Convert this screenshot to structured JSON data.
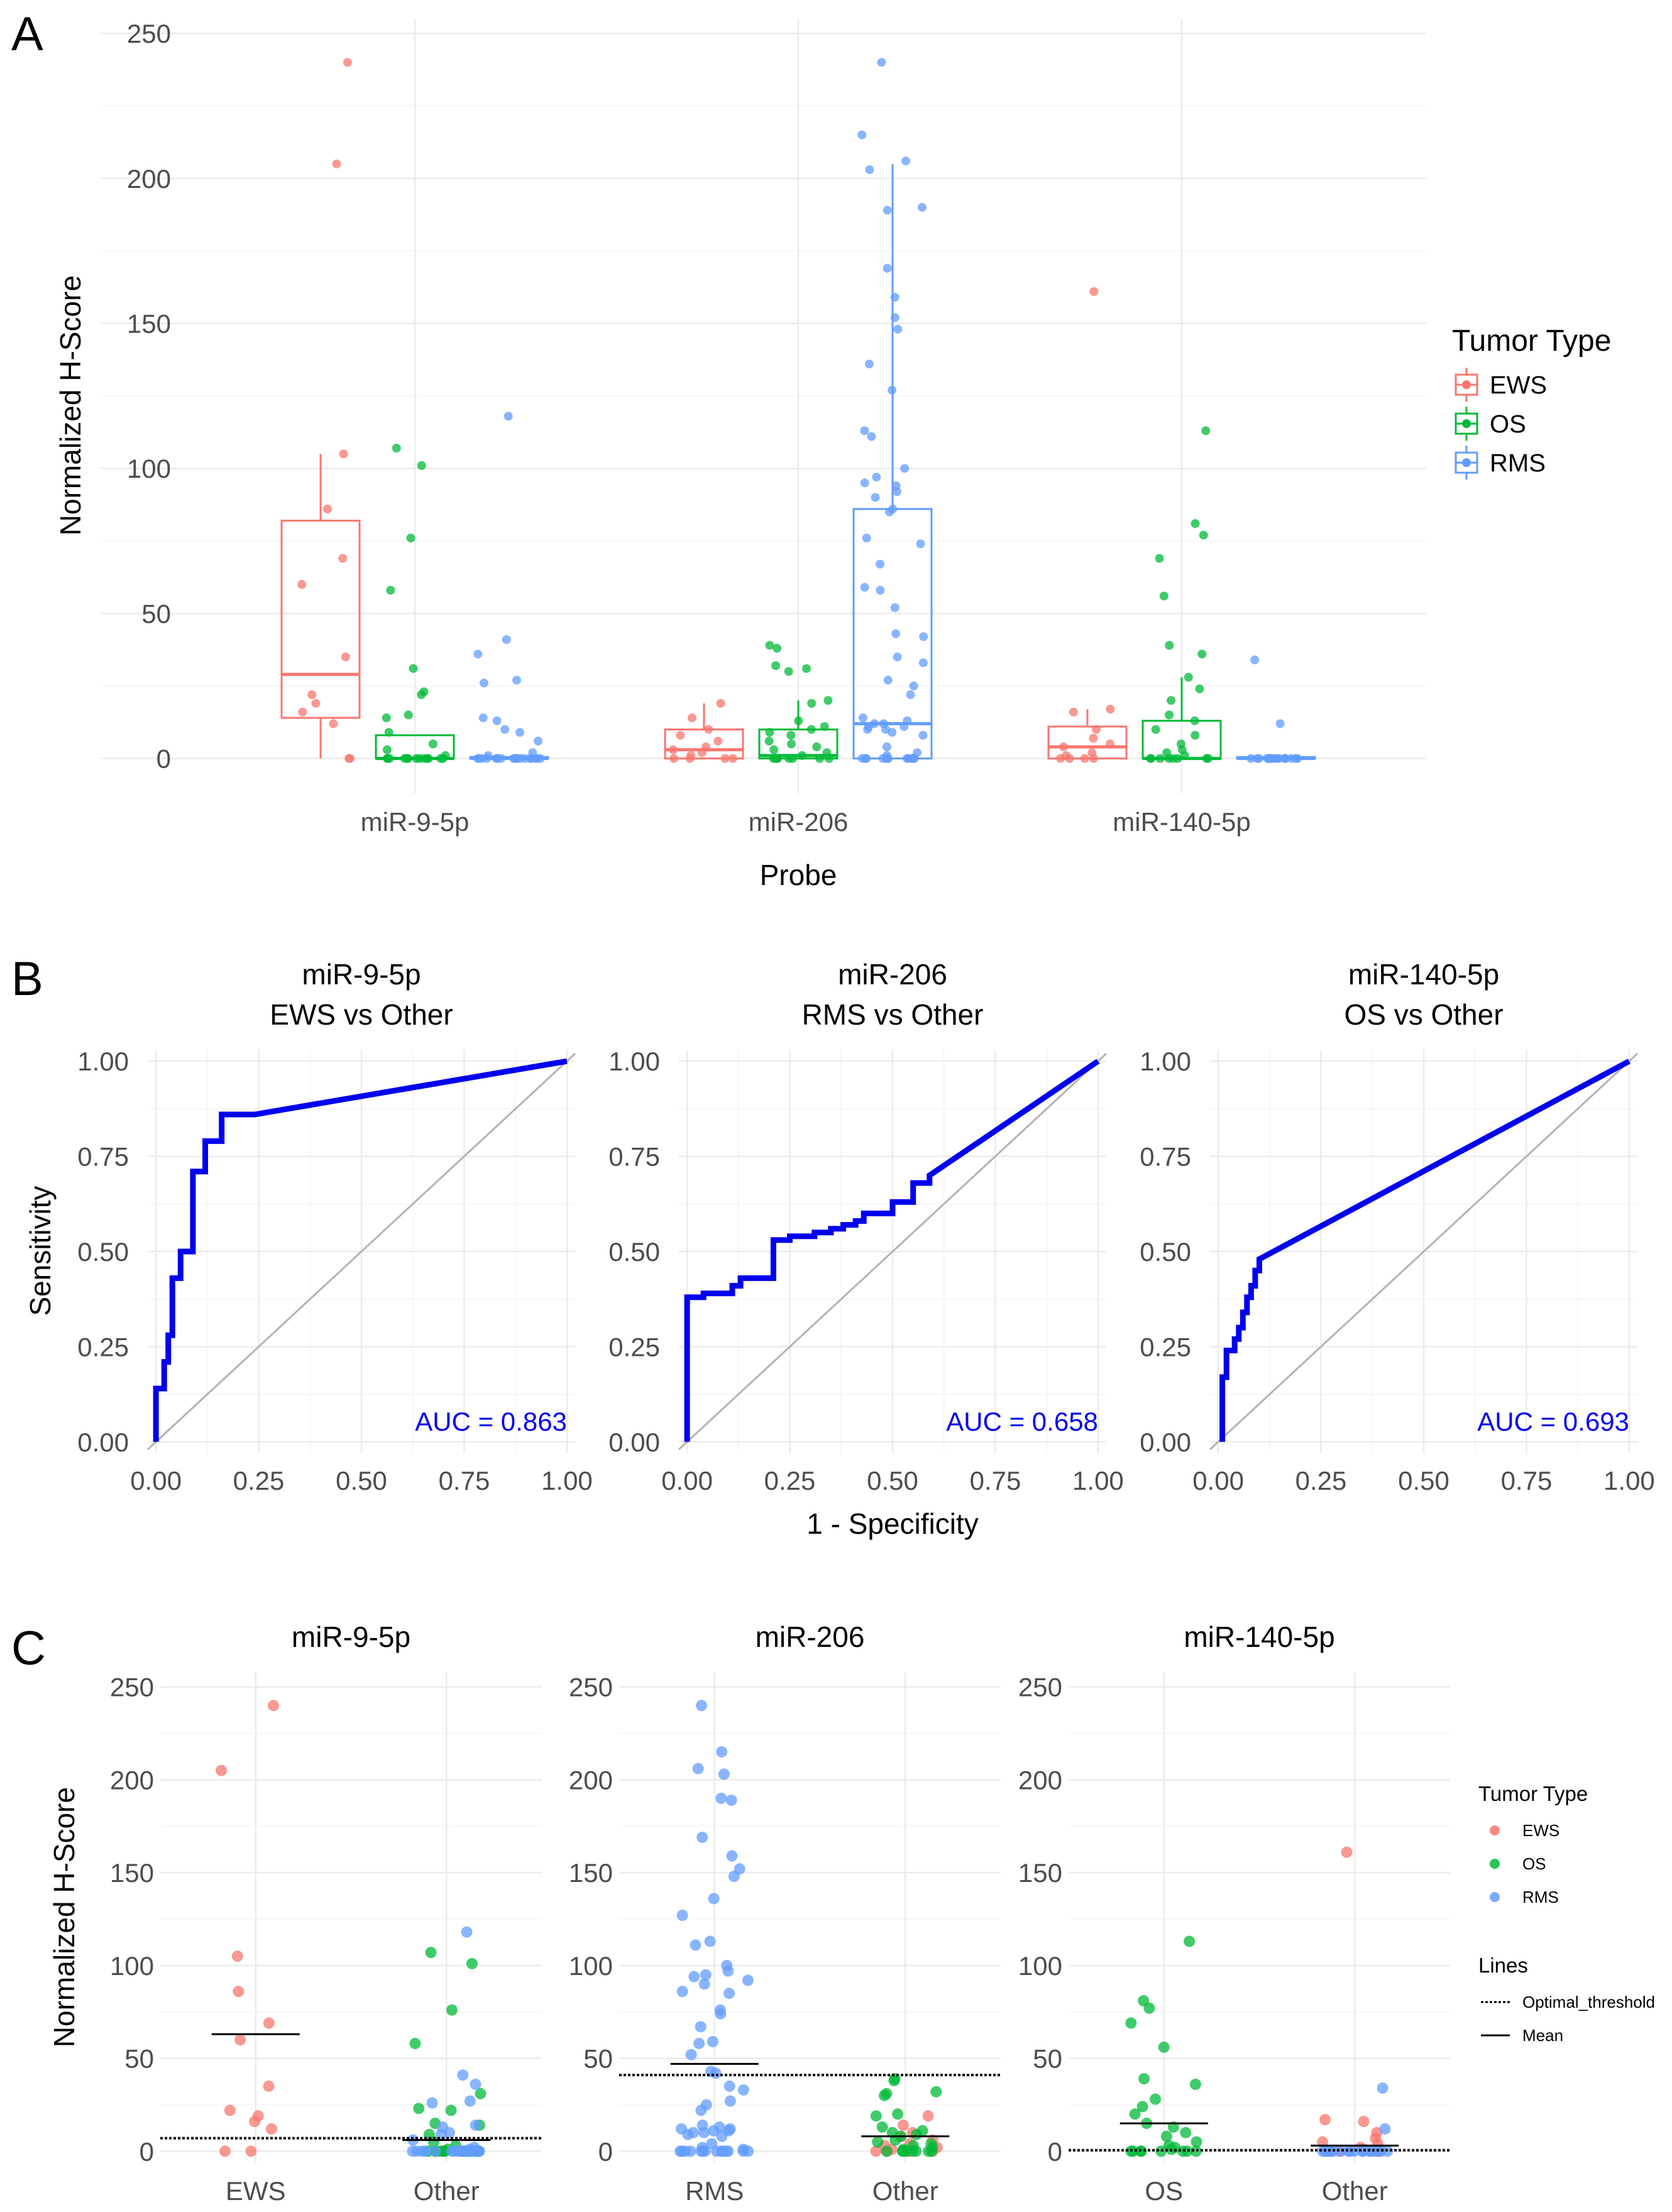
{
  "panel_labels": {
    "a": "A",
    "b": "B",
    "c": "C"
  },
  "colors": {
    "EWS": "#F8766D",
    "OS": "#00BA38",
    "RMS": "#619CFF",
    "roc": "#0000EE",
    "diagonal": "#b3b3b3",
    "auc_text": "#0000EE"
  },
  "chart_data": [
    {
      "panel": "A",
      "type": "box-jitter",
      "title": "",
      "xlabel": "Probe",
      "ylabel": "Normalized H-Score",
      "ylim": [
        -12,
        255
      ],
      "yticks": [
        0,
        50,
        100,
        150,
        200,
        250
      ],
      "ytick_labels": [
        "0",
        "50",
        "100",
        "150",
        "200",
        "250"
      ],
      "categories": [
        "miR-9-5p",
        "miR-206",
        "miR-140-5p"
      ],
      "legend": {
        "title": "Tumor Type",
        "entries": [
          "EWS",
          "OS",
          "RMS"
        ]
      },
      "boxes": [
        {
          "probe": "miR-9-5p",
          "group": "EWS",
          "q1": 14,
          "median": 29,
          "q3": 82,
          "whisker_low": 0,
          "whisker_high": 105
        },
        {
          "probe": "miR-9-5p",
          "group": "OS",
          "q1": 0,
          "median": 0,
          "q3": 8,
          "whisker_low": 0,
          "whisker_high": 8
        },
        {
          "probe": "miR-9-5p",
          "group": "RMS",
          "q1": 0,
          "median": 0,
          "q3": 0.5,
          "whisker_low": 0,
          "whisker_high": 0.5
        },
        {
          "probe": "miR-206",
          "group": "EWS",
          "q1": 0,
          "median": 3,
          "q3": 10,
          "whisker_low": 0,
          "whisker_high": 19
        },
        {
          "probe": "miR-206",
          "group": "OS",
          "q1": 0,
          "median": 1,
          "q3": 10,
          "whisker_low": 0,
          "whisker_high": 20
        },
        {
          "probe": "miR-206",
          "group": "RMS",
          "q1": 0,
          "median": 12,
          "q3": 86,
          "whisker_low": 0,
          "whisker_high": 205
        },
        {
          "probe": "miR-140-5p",
          "group": "EWS",
          "q1": 0,
          "median": 4,
          "q3": 11,
          "whisker_low": 0,
          "whisker_high": 17
        },
        {
          "probe": "miR-140-5p",
          "group": "OS",
          "q1": 0,
          "median": 0,
          "q3": 13,
          "whisker_low": 0,
          "whisker_high": 28
        },
        {
          "probe": "miR-140-5p",
          "group": "RMS",
          "q1": 0,
          "median": 0,
          "q3": 0.5,
          "whisker_low": 0,
          "whisker_high": 0.5
        }
      ],
      "points": {
        "miR-9-5p": {
          "EWS": [
            240,
            205,
            105,
            86,
            69,
            60,
            35,
            22,
            19,
            16,
            12,
            0,
            0
          ],
          "OS": [
            107,
            101,
            76,
            58,
            31,
            23,
            22,
            15,
            14,
            9,
            5,
            3,
            1,
            0,
            0,
            0,
            0,
            0,
            0,
            0,
            0,
            0,
            0,
            0,
            0,
            0
          ],
          "RMS": [
            118,
            41,
            36,
            27,
            26,
            14,
            13,
            10,
            9,
            6,
            2,
            1,
            0,
            0,
            0,
            0,
            0,
            0,
            0,
            0,
            0,
            0,
            0,
            0,
            0,
            0,
            0,
            0,
            0,
            0
          ]
        },
        "miR-206": {
          "EWS": [
            19,
            14,
            10,
            8,
            6,
            4,
            3,
            2,
            1,
            0,
            0,
            0,
            0
          ],
          "OS": [
            39,
            38,
            32,
            31,
            30,
            20,
            19,
            13,
            11,
            10,
            9,
            8,
            6,
            5,
            4,
            3,
            2,
            1,
            0,
            0,
            0,
            0,
            0,
            0,
            0,
            0
          ],
          "RMS": [
            240,
            215,
            206,
            203,
            190,
            189,
            169,
            159,
            152,
            148,
            136,
            127,
            113,
            111,
            100,
            97,
            95,
            94,
            92,
            90,
            86,
            85,
            76,
            74,
            67,
            59,
            58,
            52,
            43,
            42,
            35,
            33,
            27,
            25,
            22,
            14,
            13,
            12,
            12,
            11,
            11,
            10,
            10,
            9,
            8,
            4,
            2,
            1,
            0,
            0,
            0,
            0,
            0,
            0,
            0,
            0,
            0,
            0,
            0,
            0,
            0,
            0
          ]
        },
        "miR-140-5p": {
          "EWS": [
            161,
            17,
            16,
            10,
            7,
            5,
            4,
            2,
            1,
            0,
            0,
            0,
            0
          ],
          "OS": [
            113,
            81,
            77,
            69,
            56,
            39,
            36,
            28,
            24,
            20,
            15,
            13,
            10,
            8,
            5,
            3,
            2,
            1,
            0,
            0,
            0,
            0,
            0,
            0,
            0,
            0
          ],
          "RMS": [
            34,
            12,
            0,
            0,
            0,
            0,
            0,
            0,
            0,
            0,
            0,
            0,
            0,
            0,
            0,
            0,
            0,
            0,
            0,
            0
          ]
        }
      }
    },
    {
      "panel": "B",
      "type": "line",
      "subtype": "roc",
      "xlabel": "1 - Specificity",
      "ylabel": "Sensitivity",
      "xlim": [
        -0.02,
        1.02
      ],
      "ylim": [
        -0.03,
        1.03
      ],
      "xticks": [
        0,
        0.25,
        0.5,
        0.75,
        1
      ],
      "xtick_labels": [
        "0.00",
        "0.25",
        "0.50",
        "0.75",
        "1.00"
      ],
      "yticks": [
        0,
        0.25,
        0.5,
        0.75,
        1
      ],
      "ytick_labels": [
        "0.00",
        "0.25",
        "0.50",
        "0.75",
        "1.00"
      ],
      "facets": [
        {
          "title_line1": "miR-9-5p",
          "title_line2": "EWS vs Other",
          "auc_label": "AUC = 0.863",
          "roc": [
            [
              0,
              0
            ],
            [
              0,
              0.14
            ],
            [
              0.02,
              0.14
            ],
            [
              0.02,
              0.21
            ],
            [
              0.03,
              0.21
            ],
            [
              0.03,
              0.28
            ],
            [
              0.04,
              0.28
            ],
            [
              0.04,
              0.43
            ],
            [
              0.06,
              0.43
            ],
            [
              0.06,
              0.5
            ],
            [
              0.09,
              0.5
            ],
            [
              0.09,
              0.57
            ],
            [
              0.09,
              0.71
            ],
            [
              0.12,
              0.71
            ],
            [
              0.12,
              0.79
            ],
            [
              0.16,
              0.79
            ],
            [
              0.16,
              0.86
            ],
            [
              0.24,
              0.86
            ],
            [
              1,
              1
            ]
          ]
        },
        {
          "title_line1": "miR-206",
          "title_line2": "RMS vs Other",
          "auc_label": "AUC = 0.658",
          "roc": [
            [
              0,
              0
            ],
            [
              0,
              0.38
            ],
            [
              0.04,
              0.38
            ],
            [
              0.04,
              0.39
            ],
            [
              0.11,
              0.39
            ],
            [
              0.11,
              0.41
            ],
            [
              0.13,
              0.41
            ],
            [
              0.13,
              0.43
            ],
            [
              0.21,
              0.43
            ],
            [
              0.21,
              0.53
            ],
            [
              0.25,
              0.53
            ],
            [
              0.25,
              0.54
            ],
            [
              0.31,
              0.54
            ],
            [
              0.31,
              0.55
            ],
            [
              0.35,
              0.55
            ],
            [
              0.35,
              0.56
            ],
            [
              0.38,
              0.56
            ],
            [
              0.38,
              0.57
            ],
            [
              0.41,
              0.57
            ],
            [
              0.41,
              0.58
            ],
            [
              0.43,
              0.58
            ],
            [
              0.43,
              0.6
            ],
            [
              0.5,
              0.6
            ],
            [
              0.5,
              0.63
            ],
            [
              0.55,
              0.63
            ],
            [
              0.55,
              0.68
            ],
            [
              0.59,
              0.68
            ],
            [
              0.59,
              0.7
            ],
            [
              1,
              1
            ]
          ]
        },
        {
          "title_line1": "miR-140-5p",
          "title_line2": "OS vs Other",
          "auc_label": "AUC = 0.693",
          "roc": [
            [
              0.01,
              0
            ],
            [
              0.01,
              0.06
            ],
            [
              0.01,
              0.17
            ],
            [
              0.02,
              0.17
            ],
            [
              0.02,
              0.24
            ],
            [
              0.04,
              0.24
            ],
            [
              0.04,
              0.27
            ],
            [
              0.05,
              0.27
            ],
            [
              0.05,
              0.3
            ],
            [
              0.06,
              0.3
            ],
            [
              0.06,
              0.34
            ],
            [
              0.07,
              0.34
            ],
            [
              0.07,
              0.38
            ],
            [
              0.08,
              0.38
            ],
            [
              0.08,
              0.41
            ],
            [
              0.09,
              0.41
            ],
            [
              0.09,
              0.45
            ],
            [
              0.1,
              0.45
            ],
            [
              0.1,
              0.48
            ],
            [
              1,
              1
            ]
          ]
        }
      ]
    },
    {
      "panel": "C",
      "type": "scatter",
      "subtype": "jitter-mean-threshold",
      "ylabel": "Normalized H-Score",
      "ylim": [
        -6,
        258
      ],
      "yticks": [
        0,
        50,
        100,
        150,
        200,
        250
      ],
      "ytick_labels": [
        "0",
        "50",
        "100",
        "150",
        "200",
        "250"
      ],
      "legend": {
        "title": "Tumor Type",
        "entries": [
          "EWS",
          "OS",
          "RMS"
        ],
        "lines_title": "Lines",
        "lines_entries": [
          "Optimal_threshold",
          "Mean"
        ]
      },
      "facets": [
        {
          "title": "miR-9-5p",
          "categories": [
            "EWS",
            "Other"
          ],
          "mean": {
            "EWS": 63,
            "Other": 6
          },
          "threshold": 7,
          "groups": {
            "EWS": {
              "EWS": [
                240,
                205,
                105,
                86,
                69,
                60,
                35,
                22,
                19,
                16,
                12,
                0,
                0
              ]
            },
            "Other": {
              "OS": [
                107,
                101,
                76,
                58,
                31,
                23,
                22,
                15,
                14,
                9,
                5,
                3,
                1,
                0,
                0,
                0,
                0,
                0,
                0,
                0,
                0,
                0,
                0,
                0,
                0,
                0
              ],
              "RMS": [
                118,
                41,
                36,
                27,
                26,
                14,
                13,
                10,
                9,
                6,
                2,
                1,
                0,
                0,
                0,
                0,
                0,
                0,
                0,
                0,
                0,
                0,
                0,
                0,
                0,
                0,
                0,
                0,
                0,
                0
              ]
            }
          }
        },
        {
          "title": "miR-206",
          "categories": [
            "RMS",
            "Other"
          ],
          "mean": {
            "RMS": 47,
            "Other": 8
          },
          "threshold": 41,
          "groups": {
            "RMS": {
              "RMS": [
                240,
                215,
                206,
                203,
                190,
                189,
                169,
                159,
                152,
                148,
                136,
                127,
                113,
                111,
                100,
                97,
                95,
                94,
                92,
                90,
                86,
                85,
                76,
                74,
                67,
                59,
                58,
                52,
                43,
                42,
                35,
                33,
                27,
                25,
                22,
                14,
                13,
                12,
                12,
                11,
                11,
                10,
                10,
                9,
                8,
                4,
                2,
                1,
                0,
                0,
                0,
                0,
                0,
                0,
                0,
                0,
                0,
                0,
                0,
                0,
                0,
                0
              ]
            },
            "Other": {
              "EWS": [
                19,
                14,
                10,
                8,
                6,
                4,
                3,
                2,
                1,
                0,
                0,
                0,
                0
              ],
              "OS": [
                39,
                38,
                32,
                31,
                30,
                20,
                19,
                13,
                11,
                10,
                9,
                8,
                6,
                5,
                4,
                3,
                2,
                1,
                0,
                0,
                0,
                0,
                0,
                0,
                0,
                0
              ]
            }
          }
        },
        {
          "title": "miR-140-5p",
          "categories": [
            "OS",
            "Other"
          ],
          "mean": {
            "OS": 15,
            "Other": 3
          },
          "threshold": 0.5,
          "groups": {
            "OS": {
              "OS": [
                113,
                81,
                77,
                69,
                56,
                39,
                36,
                28,
                24,
                20,
                15,
                13,
                10,
                8,
                5,
                3,
                2,
                1,
                0,
                0,
                0,
                0,
                0,
                0,
                0,
                0
              ]
            },
            "Other": {
              "EWS": [
                161,
                17,
                16,
                10,
                7,
                5,
                4,
                2,
                1,
                0,
                0,
                0,
                0
              ],
              "RMS": [
                34,
                12,
                0,
                0,
                0,
                0,
                0,
                0,
                0,
                0,
                0,
                0,
                0,
                0,
                0,
                0,
                0,
                0,
                0,
                0
              ]
            }
          }
        }
      ]
    }
  ]
}
